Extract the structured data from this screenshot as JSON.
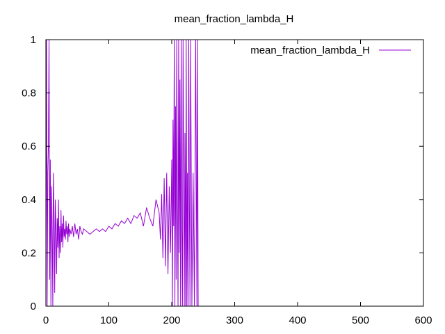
{
  "chart_data": {
    "type": "line",
    "title": "mean_fraction_lambda_H",
    "xlabel": "",
    "ylabel": "",
    "xlim": [
      0,
      600
    ],
    "ylim": [
      0,
      1
    ],
    "xticks": [
      "0",
      "100",
      "200",
      "300",
      "400",
      "500",
      "600"
    ],
    "yticks": [
      "0",
      "0.2",
      "0.4",
      "0.6",
      "0.8",
      "1"
    ],
    "grid": false,
    "legend_position": "top-right",
    "series": [
      {
        "name": "mean_fraction_lambda_H",
        "color": "#9400d3",
        "x": [
          0,
          1,
          2,
          3,
          4,
          5,
          6,
          7,
          8,
          9,
          10,
          11,
          12,
          13,
          14,
          15,
          16,
          17,
          18,
          19,
          20,
          21,
          22,
          23,
          24,
          25,
          26,
          27,
          28,
          29,
          30,
          31,
          32,
          33,
          34,
          35,
          36,
          37,
          38,
          39,
          40,
          42,
          44,
          46,
          48,
          50,
          52,
          54,
          56,
          58,
          60,
          65,
          70,
          75,
          80,
          85,
          90,
          95,
          100,
          105,
          110,
          115,
          120,
          125,
          130,
          135,
          140,
          145,
          150,
          155,
          160,
          165,
          170,
          175,
          180,
          182,
          184,
          186,
          188,
          190,
          192,
          194,
          196,
          198,
          200,
          201,
          202,
          203,
          204,
          205,
          206,
          207,
          208,
          209,
          210,
          211,
          212,
          213,
          214,
          215,
          216,
          217,
          218,
          219,
          220,
          221,
          222,
          223,
          224,
          225,
          226,
          227,
          228,
          229,
          230,
          232,
          234,
          236,
          238,
          240,
          241,
          242
        ],
        "y": [
          0.25,
          1,
          0.0,
          0.5,
          0.6,
          1,
          0.1,
          0.55,
          0.0,
          0.45,
          0.3,
          0.0,
          0.5,
          0.35,
          0.05,
          0.4,
          0.28,
          0.12,
          0.33,
          0.22,
          0.4,
          0.18,
          0.3,
          0.2,
          0.36,
          0.24,
          0.31,
          0.22,
          0.34,
          0.26,
          0.29,
          0.25,
          0.32,
          0.27,
          0.3,
          0.24,
          0.31,
          0.26,
          0.29,
          0.28,
          0.27,
          0.3,
          0.26,
          0.31,
          0.27,
          0.29,
          0.25,
          0.3,
          0.28,
          0.27,
          0.29,
          0.28,
          0.27,
          0.28,
          0.29,
          0.28,
          0.29,
          0.28,
          0.3,
          0.29,
          0.31,
          0.3,
          0.32,
          0.31,
          0.33,
          0.31,
          0.34,
          0.33,
          0.35,
          0.3,
          0.37,
          0.33,
          0.3,
          0.4,
          0.35,
          0.25,
          0.42,
          0.18,
          0.48,
          0.15,
          0.5,
          0.12,
          0.45,
          0.2,
          0.55,
          0.0,
          0.7,
          0.3,
          1,
          0.0,
          0.75,
          0.1,
          1,
          0.4,
          0.0,
          1,
          0.2,
          0.85,
          0.0,
          1,
          0.3,
          0.0,
          1,
          0.5,
          0.0,
          0.65,
          0.0,
          1,
          0.0,
          0.5,
          0.0,
          1,
          0.4,
          0.0,
          1,
          0.0,
          0.5,
          0.0,
          1,
          0.0,
          1,
          0.0
        ]
      }
    ]
  }
}
